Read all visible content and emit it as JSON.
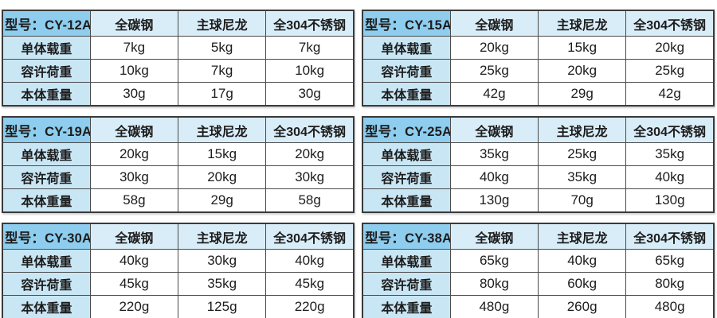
{
  "page": {
    "background": "#ffffff",
    "description_colors": {
      "model_cell_bg": "#8ecdee",
      "header_cell_bg": "#d9edf8",
      "label_cell_bg": "#c9e6f4",
      "value_cell_bg": "#ffffff",
      "border": "#4a4a4a",
      "text": "#1c1c1c"
    }
  },
  "shared": {
    "columns": [
      "全碳钢",
      "主球尼龙",
      "全304不锈钢"
    ],
    "row_labels": [
      "单体载重",
      "容许荷重",
      "本体重量"
    ]
  },
  "tables": [
    {
      "model_label": "型号：CY-12A",
      "rows": [
        [
          "7kg",
          "5kg",
          "7kg"
        ],
        [
          "10kg",
          "7kg",
          "10kg"
        ],
        [
          "30g",
          "17g",
          "30g"
        ]
      ]
    },
    {
      "model_label": "型号：CY-15A",
      "rows": [
        [
          "20kg",
          "15kg",
          "20kg"
        ],
        [
          "25kg",
          "20kg",
          "25kg"
        ],
        [
          "42g",
          "29g",
          "42g"
        ]
      ]
    },
    {
      "model_label": "型号：CY-19A",
      "rows": [
        [
          "20kg",
          "15kg",
          "20kg"
        ],
        [
          "30kg",
          "20kg",
          "30kg"
        ],
        [
          "58g",
          "29g",
          "58g"
        ]
      ]
    },
    {
      "model_label": "型号：CY-25A",
      "rows": [
        [
          "35kg",
          "25kg",
          "35kg"
        ],
        [
          "40kg",
          "35kg",
          "40kg"
        ],
        [
          "130g",
          "70g",
          "130g"
        ]
      ]
    },
    {
      "model_label": "型号：CY-30A",
      "rows": [
        [
          "40kg",
          "30kg",
          "40kg"
        ],
        [
          "45kg",
          "35kg",
          "45kg"
        ],
        [
          "220g",
          "125g",
          "220g"
        ]
      ]
    },
    {
      "model_label": "型号：CY-38A",
      "rows": [
        [
          "65kg",
          "40kg",
          "65kg"
        ],
        [
          "80kg",
          "60kg",
          "80kg"
        ],
        [
          "480g",
          "260g",
          "480g"
        ]
      ]
    }
  ]
}
